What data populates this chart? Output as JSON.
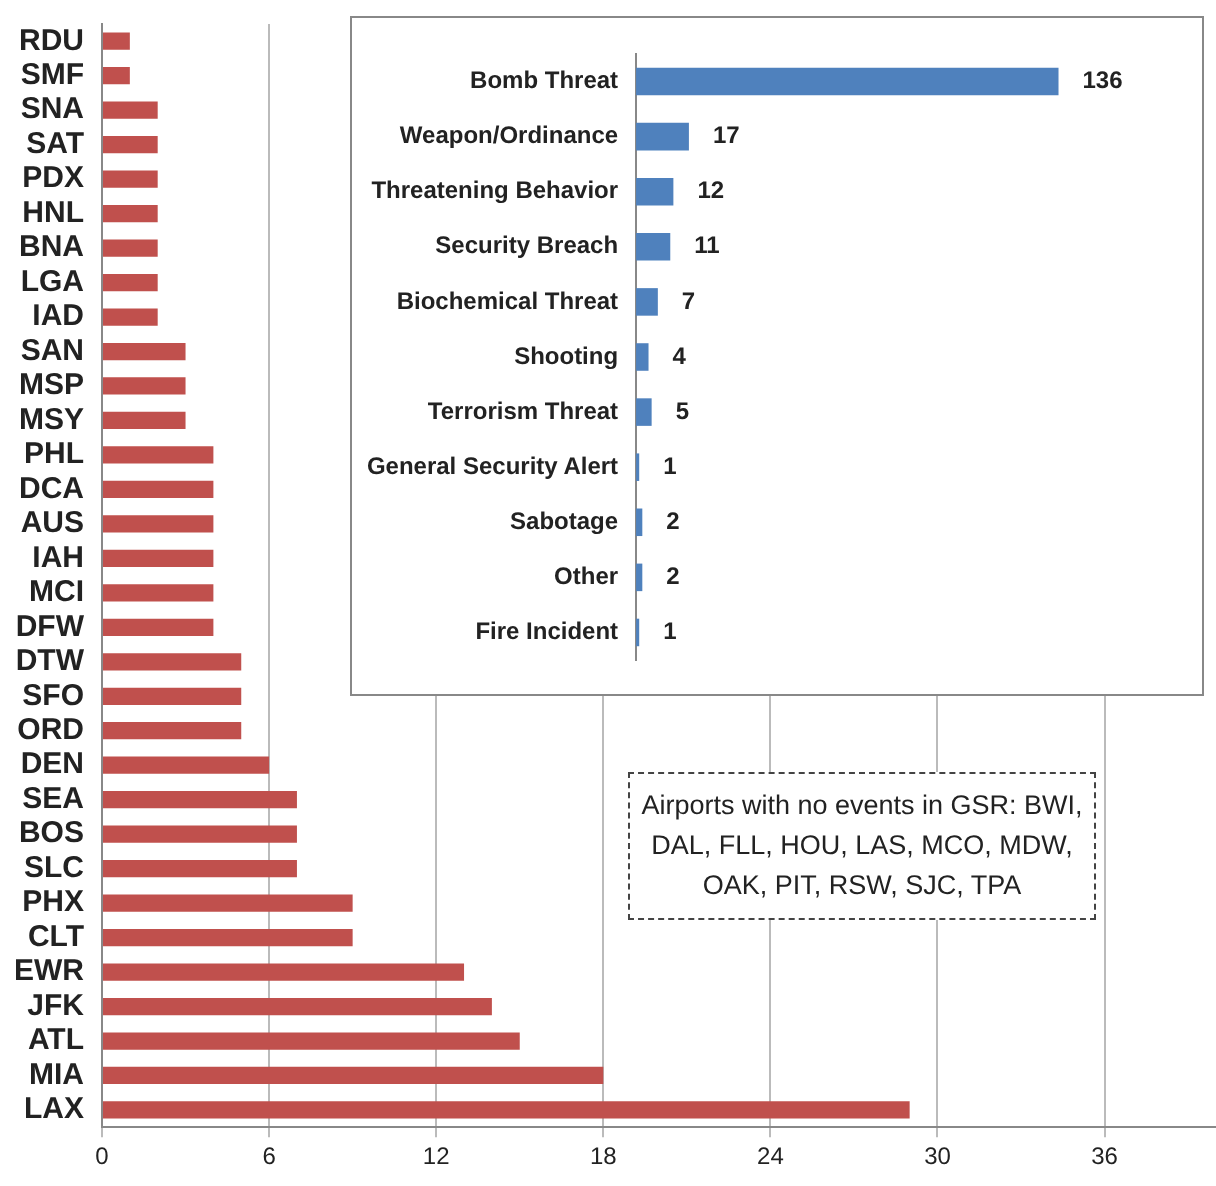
{
  "chart_data": [
    {
      "type": "bar",
      "orientation": "horizontal",
      "categories": [
        "RDU",
        "SMF",
        "SNA",
        "SAT",
        "PDX",
        "HNL",
        "BNA",
        "LGA",
        "IAD",
        "SAN",
        "MSP",
        "MSY",
        "PHL",
        "DCA",
        "AUS",
        "IAH",
        "MCI",
        "DFW",
        "DTW",
        "SFO",
        "ORD",
        "DEN",
        "SEA",
        "BOS",
        "SLC",
        "PHX",
        "CLT",
        "EWR",
        "JFK",
        "ATL",
        "MIA",
        "LAX"
      ],
      "values": [
        1,
        1,
        2,
        2,
        2,
        2,
        2,
        2,
        2,
        3,
        3,
        3,
        4,
        4,
        4,
        4,
        4,
        4,
        5,
        5,
        5,
        6,
        7,
        7,
        7,
        9,
        9,
        13,
        14,
        15,
        18,
        29
      ],
      "color": "#c0504d",
      "xlim": [
        0,
        40
      ],
      "xticks": [
        0,
        6,
        12,
        18,
        24,
        30,
        36
      ],
      "grid": "x",
      "annotations": [
        "Airports with no events in GSR: BWI, DAL, FLL, HOU, LAS, MCO, MDW, OAK, PIT, RSW, SJC, TPA"
      ]
    },
    {
      "type": "bar",
      "orientation": "horizontal",
      "categories": [
        "Bomb Threat",
        "Weapon/Ordinance",
        "Threatening Behavior",
        "Security Breach",
        "Biochemical Threat",
        "Shooting",
        "Terrorism Threat",
        "General Security Alert",
        "Sabotage",
        "Other",
        "Fire Incident"
      ],
      "values": [
        136,
        17,
        12,
        11,
        7,
        4,
        5,
        1,
        2,
        2,
        1
      ],
      "color": "#4f81bd",
      "data_labels": true,
      "tick_labels": "y",
      "grid": false
    }
  ]
}
